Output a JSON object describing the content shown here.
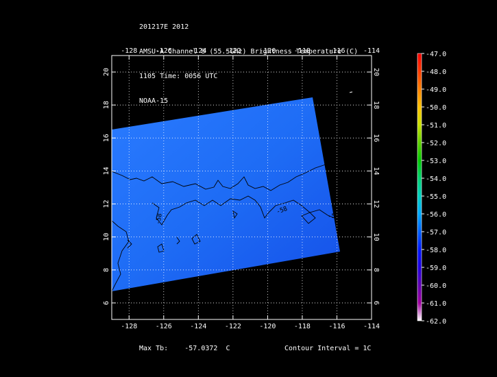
{
  "header": {
    "line1": "201217E 2012",
    "line2": "AMSU-A Channel 8 (55.5GHz) Brightness Temperature (C)",
    "line3": "1105 Time: 0056 UTC",
    "line4": "NOAA-15"
  },
  "map": {
    "lon_ticks": [
      "-128",
      "-126",
      "-124",
      "-122",
      "-120",
      "-118",
      "-116",
      "-114"
    ],
    "lat_ticks": [
      "20",
      "18",
      "16",
      "14",
      "12",
      "10",
      "8",
      "6"
    ],
    "lon_range": [
      -129.0,
      -114.0
    ],
    "lat_range": [
      5.0,
      21.0
    ],
    "grid": "dotted",
    "swath_color": "#1e6cf5",
    "contour_labels": [
      "-58",
      "-58",
      "-58"
    ],
    "contour_color": "#000000"
  },
  "colorbar": {
    "labels": [
      "-47.0",
      "-48.0",
      "-49.0",
      "-50.0",
      "-51.0",
      "-52.0",
      "-53.0",
      "-54.0",
      "-55.0",
      "-56.0",
      "-57.0",
      "-58.0",
      "-59.0",
      "-60.0",
      "-61.0",
      "-62.0"
    ],
    "colors": [
      "#ff0000",
      "#ff3a00",
      "#ff8000",
      "#ffc000",
      "#c8e000",
      "#60d000",
      "#00c800",
      "#00d070",
      "#00d0c0",
      "#00a8ff",
      "#0060ff",
      "#0018ff",
      "#2000e0",
      "#6000b0",
      "#a000a0",
      "#ffffff"
    ]
  },
  "footer": {
    "max_label": "Max Tb:",
    "max_value": "-57.0372",
    "max_unit": "C",
    "contour_label": "Contour Interval = 1C"
  }
}
